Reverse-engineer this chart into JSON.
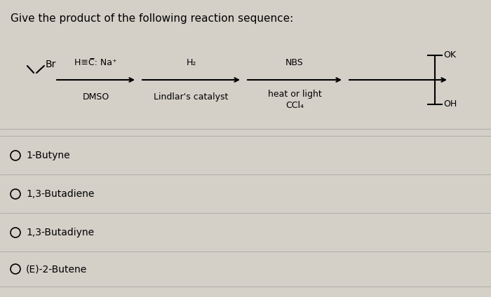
{
  "title": "Give the product of the following reaction sequence:",
  "title_fontsize": 11,
  "background_color": "#d4d0c8",
  "text_color": "#000000",
  "choices": [
    "1-Butyne",
    "1,3-Butadiene",
    "1,3-Butadiyne",
    "(E)-2-Butene"
  ],
  "reaction": {
    "starting_material": "\\\\Br",
    "step1_top": "H≡C̅: Na⁺",
    "step1_bot": "DMSO",
    "step2_top": "H₂",
    "step2_bot": "Lindlar's catalyst",
    "step3_top": "NBS",
    "step3_bot": "heat or light",
    "step3_bot2": "CCl₄",
    "product_top": "⊤OK",
    "product_bot": "⊤OH"
  }
}
